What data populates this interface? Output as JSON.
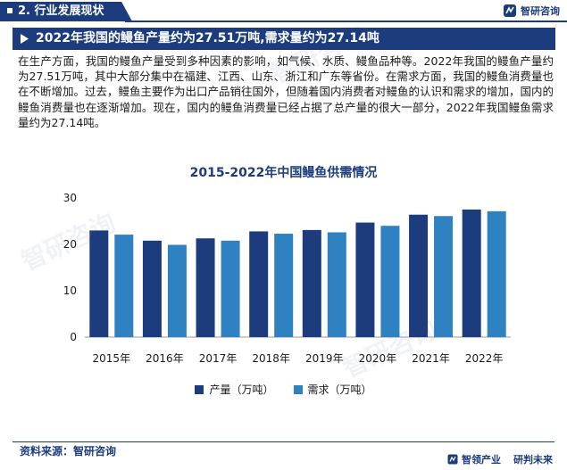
{
  "header": {
    "section_title": "2. 行业发展现状",
    "logo_text": "智研咨询"
  },
  "headline": "2022年我国的鳗鱼产量约为27.51万吨,需求量约为27.14吨",
  "paragraph": "在生产方面，我国的鳗鱼产量受到多种因素的影响，如气候、水质、鳗鱼品种等。2022年我国的鳗鱼产量约为27.51万吨，其中大部分集中在福建、江西、山东、浙江和广东等省份。在需求方面，我国的鳗鱼消费量也在不断增加。过去，鳗鱼主要作为出口产品销往国外，但随着国内消费者对鳗鱼的认识和需求的增加，国内的鳗鱼消费量也在逐渐增加。现在，国内的鳗鱼消费量已经占据了总产量的很大一部分，2022年我国鳗鱼需求量约为27.14吨。",
  "chart_data": {
    "type": "bar",
    "title": "2015-2022年中国鳗鱼供需情况",
    "categories": [
      "2015年",
      "2016年",
      "2017年",
      "2018年",
      "2019年",
      "2020年",
      "2021年",
      "2022年"
    ],
    "series": [
      {
        "name": "产量（万吨）",
        "color": "#1d3c7d",
        "values": [
          23.0,
          20.8,
          21.3,
          22.8,
          23.1,
          24.7,
          26.4,
          27.51
        ]
      },
      {
        "name": "需求（万吨）",
        "color": "#2f82c2",
        "values": [
          22.1,
          19.9,
          20.8,
          22.3,
          22.6,
          24.0,
          26.1,
          27.14
        ]
      }
    ],
    "yticks": [
      0,
      10,
      20,
      30
    ],
    "ylim": [
      0,
      30
    ],
    "legend": "bottom",
    "grid": false
  },
  "footer": {
    "source": "资料来源：智研咨询",
    "slogan_left": "智领产业",
    "slogan_right": "研判未来"
  },
  "watermark": "智研咨询 www.chyxx.com"
}
